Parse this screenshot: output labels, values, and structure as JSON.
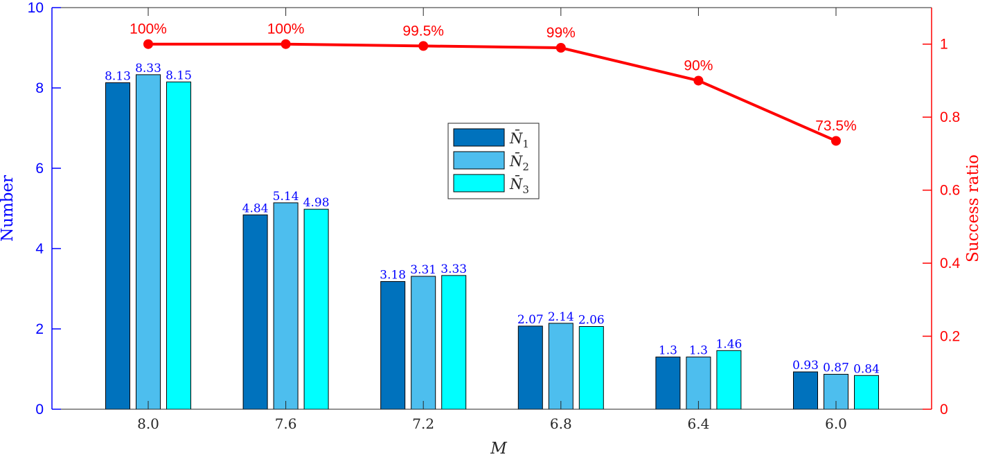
{
  "chart_data": {
    "type": "bar",
    "xlabel": "M",
    "ylabel": "Number",
    "ylabel_right": "Success ratio",
    "categories": [
      "8.0",
      "7.6",
      "7.2",
      "6.8",
      "6.4",
      "6.0"
    ],
    "ylim": [
      0,
      10
    ],
    "yticks": [
      "0",
      "2",
      "4",
      "6",
      "8",
      "10"
    ],
    "ylim_right": [
      0,
      1.1
    ],
    "yticks_right": [
      "0",
      "0.2",
      "0.4",
      "0.6",
      "0.8",
      "1"
    ],
    "series": [
      {
        "name": "N̄1",
        "base": "N̄",
        "sub": "1",
        "color": "#0072BD",
        "values": [
          8.13,
          4.84,
          3.18,
          2.07,
          1.3,
          0.93
        ],
        "labels": [
          "8.13",
          "4.84",
          "3.18",
          "2.07",
          "1.3",
          "0.93"
        ]
      },
      {
        "name": "N̄2",
        "base": "N̄",
        "sub": "2",
        "color": "#4DBEEE",
        "values": [
          8.33,
          5.14,
          3.31,
          2.14,
          1.3,
          0.87
        ],
        "labels": [
          "8.33",
          "5.14",
          "3.31",
          "2.14",
          "1.3",
          "0.87"
        ]
      },
      {
        "name": "N̄3",
        "base": "N̄",
        "sub": "3",
        "color": "#00FFFF",
        "values": [
          8.15,
          4.98,
          3.33,
          2.06,
          1.46,
          0.84
        ],
        "labels": [
          "8.15",
          "4.98",
          "3.33",
          "2.06",
          "1.46",
          "0.84"
        ]
      }
    ],
    "line_series": {
      "name": "Success ratio",
      "axis": "right",
      "color": "#FF0000",
      "values": [
        1.0,
        1.0,
        0.995,
        0.99,
        0.9,
        0.735
      ],
      "labels": [
        "100%",
        "100%",
        "99.5%",
        "99%",
        "90%",
        "73.5%"
      ]
    },
    "legend_position": "center",
    "grid": false,
    "left_axis_color": "#0000FF",
    "right_axis_color": "#FF0000"
  }
}
